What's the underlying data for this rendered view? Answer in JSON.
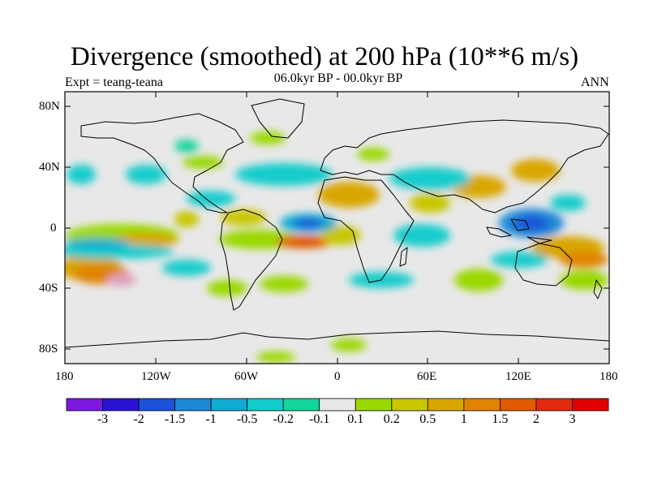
{
  "title": "Divergence (smoothed) at 200 hPa (10**6 m/s)",
  "expt_label": "Expt = teang-teana",
  "period_label": "06.0kyr BP - 00.0kyr BP",
  "season_label": "ANN",
  "lat_ticks": [
    "80N",
    "40N",
    "0",
    "40S",
    "80S"
  ],
  "lon_ticks": [
    "180",
    "120W",
    "60W",
    "0",
    "60E",
    "120E",
    "180"
  ],
  "colorbar": {
    "labels": [
      "-3",
      "-2",
      "-1.5",
      "-1",
      "-0.5",
      "-0.2",
      "-0.1",
      "0.1",
      "0.2",
      "0.5",
      "1",
      "1.5",
      "2",
      "3"
    ],
    "colors": [
      "#7a18e0",
      "#2a14d2",
      "#1c52d8",
      "#1c88d6",
      "#10aad2",
      "#12cccc",
      "#13d49a",
      "#e8e8e8",
      "#9ad800",
      "#c8c600",
      "#d9a600",
      "#e08300",
      "#e05a00",
      "#e02a10",
      "#e00000"
    ]
  },
  "map_colors": {
    "background": "#e8e8e8",
    "land_outline": "#000000"
  }
}
